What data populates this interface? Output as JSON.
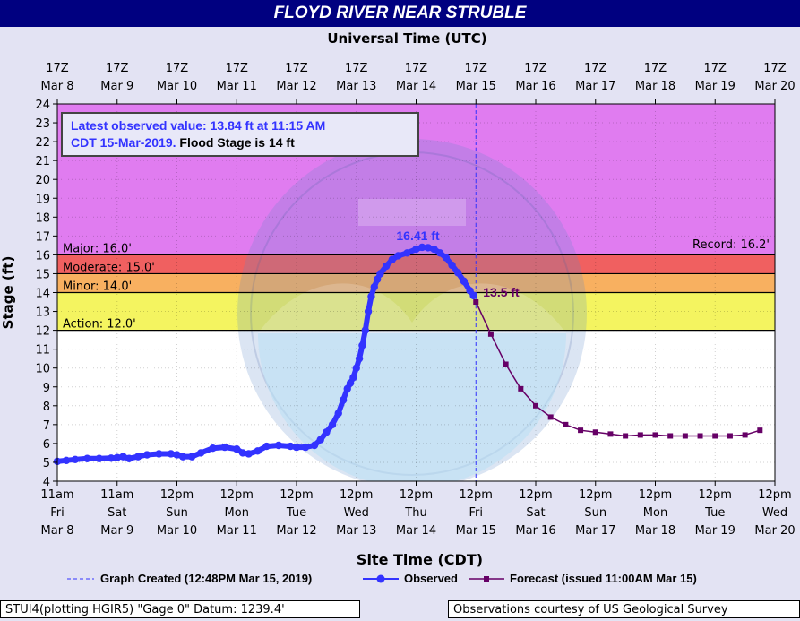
{
  "title": "FLOYD RIVER NEAR STRUBLE",
  "footer": {
    "left": "STUI4(plotting HGIR5) \"Gage 0\" Datum: 1239.4'",
    "right": "Observations courtesy of US Geological Survey"
  },
  "chart_data": {
    "type": "line",
    "top_axis_title": "Universal Time (UTC)",
    "xlabel": "Site Time (CDT)",
    "ylabel": "Stage (ft)",
    "ylim": [
      4,
      24
    ],
    "y_ticks": [
      4,
      5,
      6,
      7,
      8,
      9,
      10,
      11,
      12,
      13,
      14,
      15,
      16,
      17,
      18,
      19,
      20,
      21,
      22,
      23,
      24
    ],
    "x_range_days": [
      "Mar 8",
      "Mar 20"
    ],
    "top_ticks": [
      {
        "l1": "17Z",
        "l2": "Mar  8"
      },
      {
        "l1": "17Z",
        "l2": "Mar  9"
      },
      {
        "l1": "17Z",
        "l2": "Mar 10"
      },
      {
        "l1": "17Z",
        "l2": "Mar 11"
      },
      {
        "l1": "17Z",
        "l2": "Mar 12"
      },
      {
        "l1": "17Z",
        "l2": "Mar 13"
      },
      {
        "l1": "17Z",
        "l2": "Mar 14"
      },
      {
        "l1": "17Z",
        "l2": "Mar 15"
      },
      {
        "l1": "17Z",
        "l2": "Mar 16"
      },
      {
        "l1": "17Z",
        "l2": "Mar 17"
      },
      {
        "l1": "17Z",
        "l2": "Mar 18"
      },
      {
        "l1": "17Z",
        "l2": "Mar 19"
      },
      {
        "l1": "17Z",
        "l2": "Mar 20"
      }
    ],
    "bottom_ticks": [
      {
        "l1": "11am",
        "l2": "Fri",
        "l3": "Mar 8"
      },
      {
        "l1": "11am",
        "l2": "Sat",
        "l3": "Mar 9"
      },
      {
        "l1": "12pm",
        "l2": "Sun",
        "l3": "Mar 10"
      },
      {
        "l1": "12pm",
        "l2": "Mon",
        "l3": "Mar 11"
      },
      {
        "l1": "12pm",
        "l2": "Tue",
        "l3": "Mar 12"
      },
      {
        "l1": "12pm",
        "l2": "Wed",
        "l3": "Mar 13"
      },
      {
        "l1": "12pm",
        "l2": "Thu",
        "l3": "Mar 14"
      },
      {
        "l1": "12pm",
        "l2": "Fri",
        "l3": "Mar 15"
      },
      {
        "l1": "12pm",
        "l2": "Sat",
        "l3": "Mar 16"
      },
      {
        "l1": "12pm",
        "l2": "Sun",
        "l3": "Mar 17"
      },
      {
        "l1": "12pm",
        "l2": "Mon",
        "l3": "Mar 18"
      },
      {
        "l1": "12pm",
        "l2": "Tue",
        "l3": "Mar 19"
      },
      {
        "l1": "12pm",
        "l2": "Wed",
        "l3": "Mar 20"
      }
    ],
    "flood_categories": [
      {
        "name": "Major",
        "stage": 16.0,
        "label": "Major: 16.0'",
        "band": [
          16,
          24
        ],
        "color": "#e07cf0"
      },
      {
        "name": "Moderate",
        "stage": 15.0,
        "label": "Moderate: 15.0'",
        "band": [
          15,
          16
        ],
        "color": "#f06060"
      },
      {
        "name": "Minor",
        "stage": 14.0,
        "label": "Minor: 14.0'",
        "band": [
          14,
          15
        ],
        "color": "#f8b060"
      },
      {
        "name": "Action",
        "stage": 12.0,
        "label": "Action: 12.0'",
        "band": [
          12,
          14
        ],
        "color": "#f4f460"
      }
    ],
    "record": {
      "stage": 16.2,
      "label": "Record: 16.2'"
    },
    "annotation": {
      "line1": "Latest observed value: 13.84 ft at 11:15 AM",
      "line2a": "CDT 15-Mar-2019.",
      "line2b": "Flood Stage is 14 ft"
    },
    "peak_label": {
      "text": "16.41 ft",
      "x": 6.0,
      "y": 16.41
    },
    "forecast_label": {
      "text": "13.5 ft",
      "x": 7.0,
      "y": 13.5
    },
    "graph_created_x": 7.0,
    "legend": {
      "created": "Graph Created (12:48PM Mar 15, 2019)",
      "observed": "Observed",
      "forecast": "Forecast (issued 11:00AM Mar 15)"
    },
    "series": [
      {
        "name": "Observed",
        "color": "#3333ff",
        "points": [
          [
            0.0,
            5.05
          ],
          [
            0.15,
            5.1
          ],
          [
            0.3,
            5.15
          ],
          [
            0.5,
            5.2
          ],
          [
            0.7,
            5.2
          ],
          [
            0.9,
            5.22
          ],
          [
            1.0,
            5.25
          ],
          [
            1.1,
            5.3
          ],
          [
            1.2,
            5.2
          ],
          [
            1.35,
            5.3
          ],
          [
            1.5,
            5.4
          ],
          [
            1.7,
            5.45
          ],
          [
            1.9,
            5.45
          ],
          [
            2.0,
            5.4
          ],
          [
            2.1,
            5.3
          ],
          [
            2.25,
            5.3
          ],
          [
            2.4,
            5.5
          ],
          [
            2.6,
            5.75
          ],
          [
            2.8,
            5.8
          ],
          [
            3.0,
            5.7
          ],
          [
            3.1,
            5.5
          ],
          [
            3.2,
            5.45
          ],
          [
            3.35,
            5.6
          ],
          [
            3.5,
            5.85
          ],
          [
            3.7,
            5.9
          ],
          [
            3.9,
            5.85
          ],
          [
            4.0,
            5.8
          ],
          [
            4.15,
            5.8
          ],
          [
            4.3,
            5.9
          ],
          [
            4.4,
            6.2
          ],
          [
            4.5,
            6.6
          ],
          [
            4.6,
            7.0
          ],
          [
            4.7,
            7.6
          ],
          [
            4.78,
            8.3
          ],
          [
            4.85,
            8.9
          ],
          [
            4.9,
            9.2
          ],
          [
            4.95,
            9.5
          ],
          [
            5.0,
            10.0
          ],
          [
            5.05,
            10.5
          ],
          [
            5.1,
            11.2
          ],
          [
            5.15,
            12.0
          ],
          [
            5.2,
            13.0
          ],
          [
            5.25,
            13.8
          ],
          [
            5.3,
            14.3
          ],
          [
            5.35,
            14.7
          ],
          [
            5.4,
            15.0
          ],
          [
            5.5,
            15.4
          ],
          [
            5.6,
            15.75
          ],
          [
            5.7,
            15.95
          ],
          [
            5.85,
            16.1
          ],
          [
            6.0,
            16.3
          ],
          [
            6.1,
            16.4
          ],
          [
            6.2,
            16.38
          ],
          [
            6.3,
            16.3
          ],
          [
            6.4,
            16.1
          ],
          [
            6.5,
            15.85
          ],
          [
            6.6,
            15.45
          ],
          [
            6.7,
            15.05
          ],
          [
            6.8,
            14.6
          ],
          [
            6.9,
            14.1
          ],
          [
            6.96,
            13.84
          ]
        ]
      },
      {
        "name": "Forecast",
        "color": "#660066",
        "points": [
          [
            7.0,
            13.5
          ],
          [
            7.25,
            11.8
          ],
          [
            7.5,
            10.2
          ],
          [
            7.75,
            8.9
          ],
          [
            8.0,
            8.0
          ],
          [
            8.25,
            7.4
          ],
          [
            8.5,
            7.0
          ],
          [
            8.75,
            6.7
          ],
          [
            9.0,
            6.6
          ],
          [
            9.25,
            6.5
          ],
          [
            9.5,
            6.4
          ],
          [
            9.75,
            6.45
          ],
          [
            10.0,
            6.45
          ],
          [
            10.25,
            6.4
          ],
          [
            10.5,
            6.4
          ],
          [
            10.75,
            6.4
          ],
          [
            11.0,
            6.4
          ],
          [
            11.25,
            6.4
          ],
          [
            11.5,
            6.45
          ],
          [
            11.75,
            6.7
          ]
        ]
      }
    ]
  }
}
